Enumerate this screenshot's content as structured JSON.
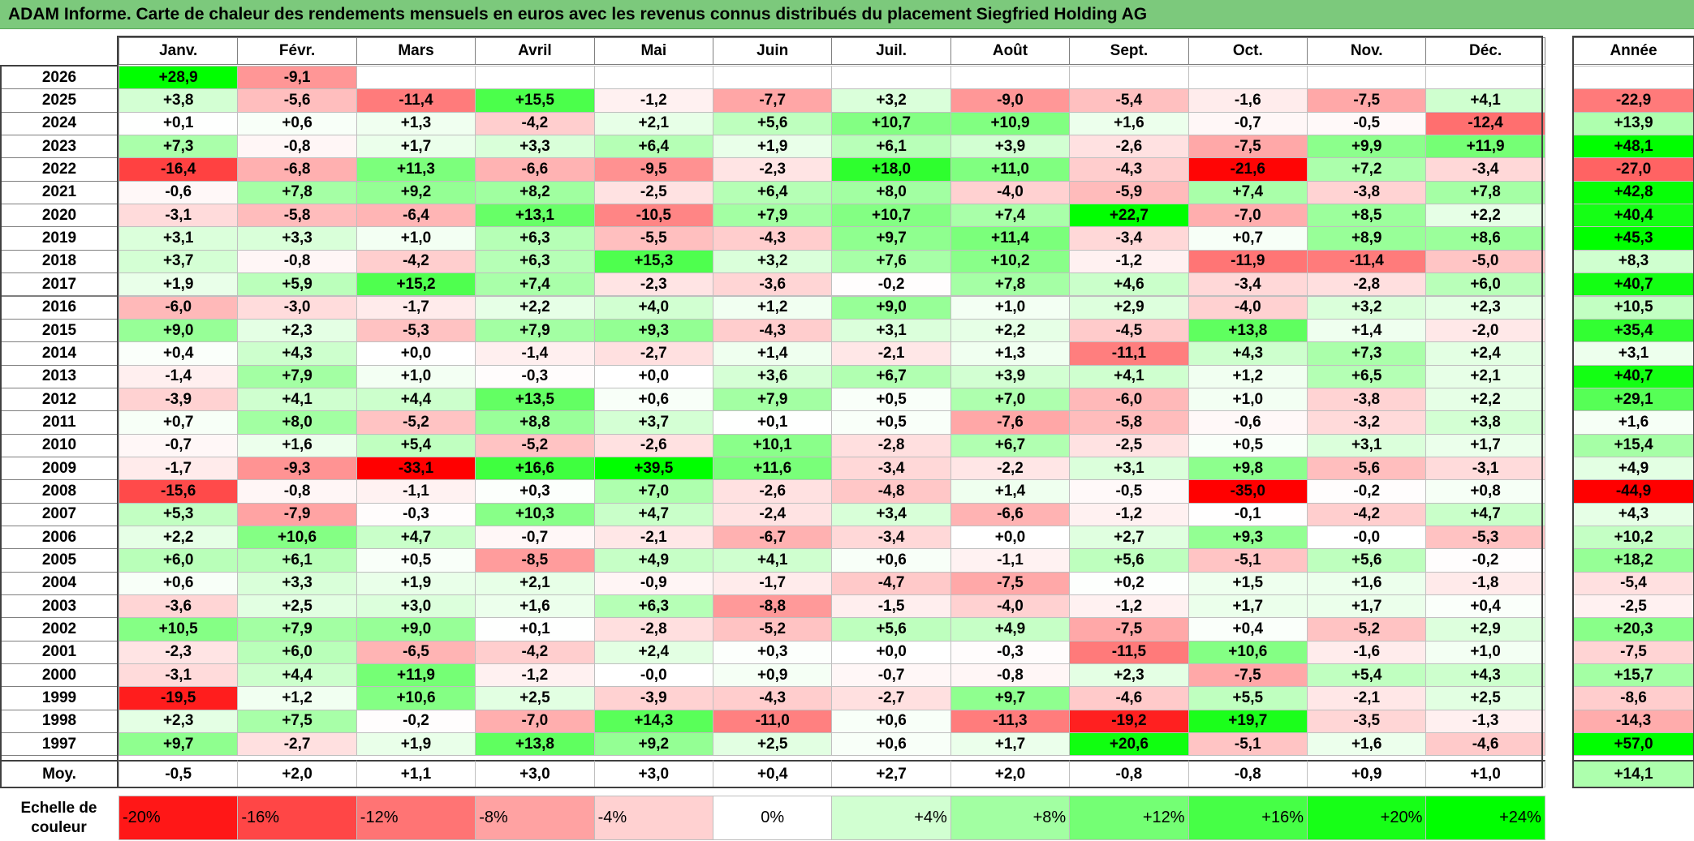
{
  "title": "ADAM Informe. Carte de chaleur des rendements mensuels en euros avec les revenus connus distribués du placement Siegfried Holding AG",
  "chart_data": {
    "type": "heatmap",
    "columns": [
      "Janv.",
      "Févr.",
      "Mars",
      "Avril",
      "Mai",
      "Juin",
      "Juil.",
      "Août",
      "Sept.",
      "Oct.",
      "Nov.",
      "Déc."
    ],
    "year_header": "Année",
    "rows": [
      {
        "year": "2026",
        "months": [
          "+28,9",
          "-9,1",
          "",
          "",
          "",
          "",
          "",
          "",
          "",
          "",
          "",
          ""
        ],
        "annual": ""
      },
      {
        "year": "2025",
        "months": [
          "+3,8",
          "-5,6",
          "-11,4",
          "+15,5",
          "-1,2",
          "-7,7",
          "+3,2",
          "-9,0",
          "-5,4",
          "-1,6",
          "-7,5",
          "+4,1"
        ],
        "annual": "-22,9"
      },
      {
        "year": "2024",
        "months": [
          "+0,1",
          "+0,6",
          "+1,3",
          "-4,2",
          "+2,1",
          "+5,6",
          "+10,7",
          "+10,9",
          "+1,6",
          "-0,7",
          "-0,5",
          "-12,4"
        ],
        "annual": "+13,9"
      },
      {
        "year": "2023",
        "months": [
          "+7,3",
          "-0,8",
          "+1,7",
          "+3,3",
          "+6,4",
          "+1,9",
          "+6,1",
          "+3,9",
          "-2,6",
          "-7,5",
          "+9,9",
          "+11,9"
        ],
        "annual": "+48,1"
      },
      {
        "year": "2022",
        "months": [
          "-16,4",
          "-6,8",
          "+11,3",
          "-6,6",
          "-9,5",
          "-2,3",
          "+18,0",
          "+11,0",
          "-4,3",
          "-21,6",
          "+7,2",
          "-3,4"
        ],
        "annual": "-27,0"
      },
      {
        "year": "2021",
        "months": [
          "-0,6",
          "+7,8",
          "+9,2",
          "+8,2",
          "-2,5",
          "+6,4",
          "+8,0",
          "-4,0",
          "-5,9",
          "+7,4",
          "-3,8",
          "+7,8"
        ],
        "annual": "+42,8"
      },
      {
        "year": "2020",
        "months": [
          "-3,1",
          "-5,8",
          "-6,4",
          "+13,1",
          "-10,5",
          "+7,9",
          "+10,7",
          "+7,4",
          "+22,7",
          "-7,0",
          "+8,5",
          "+2,2"
        ],
        "annual": "+40,4"
      },
      {
        "year": "2019",
        "months": [
          "+3,1",
          "+3,3",
          "+1,0",
          "+6,3",
          "-5,5",
          "-4,3",
          "+9,7",
          "+11,4",
          "-3,4",
          "+0,7",
          "+8,9",
          "+8,6"
        ],
        "annual": "+45,3"
      },
      {
        "year": "2018",
        "months": [
          "+3,7",
          "-0,8",
          "-4,2",
          "+6,3",
          "+15,3",
          "+3,2",
          "+7,6",
          "+10,2",
          "-1,2",
          "-11,9",
          "-11,4",
          "-5,0"
        ],
        "annual": "+8,3"
      },
      {
        "year": "2017",
        "months": [
          "+1,9",
          "+5,9",
          "+15,2",
          "+7,4",
          "-2,3",
          "-3,6",
          "-0,2",
          "+7,8",
          "+4,6",
          "-3,4",
          "-2,8",
          "+6,0"
        ],
        "annual": "+40,7"
      },
      {
        "year": "2016",
        "months": [
          "-6,0",
          "-3,0",
          "-1,7",
          "+2,2",
          "+4,0",
          "+1,2",
          "+9,0",
          "+1,0",
          "+2,9",
          "-4,0",
          "+3,2",
          "+2,3"
        ],
        "annual": "+10,5"
      },
      {
        "year": "2015",
        "months": [
          "+9,0",
          "+2,3",
          "-5,3",
          "+7,9",
          "+9,3",
          "-4,3",
          "+3,1",
          "+2,2",
          "-4,5",
          "+13,8",
          "+1,4",
          "-2,0"
        ],
        "annual": "+35,4"
      },
      {
        "year": "2014",
        "months": [
          "+0,4",
          "+4,3",
          "+0,0",
          "-1,4",
          "-2,7",
          "+1,4",
          "-2,1",
          "+1,3",
          "-11,1",
          "+4,3",
          "+7,3",
          "+2,4"
        ],
        "annual": "+3,1"
      },
      {
        "year": "2013",
        "months": [
          "-1,4",
          "+7,9",
          "+1,0",
          "-0,3",
          "+0,0",
          "+3,6",
          "+6,7",
          "+3,9",
          "+4,1",
          "+1,2",
          "+6,5",
          "+2,1"
        ],
        "annual": "+40,7"
      },
      {
        "year": "2012",
        "months": [
          "-3,9",
          "+4,1",
          "+4,4",
          "+13,5",
          "+0,6",
          "+7,9",
          "+0,5",
          "+7,0",
          "-6,0",
          "+1,0",
          "-3,8",
          "+2,2"
        ],
        "annual": "+29,1"
      },
      {
        "year": "2011",
        "months": [
          "+0,7",
          "+8,0",
          "-5,2",
          "+8,8",
          "+3,7",
          "+0,1",
          "+0,5",
          "-7,6",
          "-5,8",
          "-0,6",
          "-3,2",
          "+3,8"
        ],
        "annual": "+1,6"
      },
      {
        "year": "2010",
        "months": [
          "-0,7",
          "+1,6",
          "+5,4",
          "-5,2",
          "-2,6",
          "+10,1",
          "-2,8",
          "+6,7",
          "-2,5",
          "+0,5",
          "+3,1",
          "+1,7"
        ],
        "annual": "+15,4"
      },
      {
        "year": "2009",
        "months": [
          "-1,7",
          "-9,3",
          "-33,1",
          "+16,6",
          "+39,5",
          "+11,6",
          "-3,4",
          "-2,2",
          "+3,1",
          "+9,8",
          "-5,6",
          "-3,1"
        ],
        "annual": "+4,9"
      },
      {
        "year": "2008",
        "months": [
          "-15,6",
          "-0,8",
          "-1,1",
          "+0,3",
          "+7,0",
          "-2,6",
          "-4,8",
          "+1,4",
          "-0,5",
          "-35,0",
          "-0,2",
          "+0,8"
        ],
        "annual": "-44,9"
      },
      {
        "year": "2007",
        "months": [
          "+5,3",
          "-7,9",
          "-0,3",
          "+10,3",
          "+4,7",
          "-2,4",
          "+3,4",
          "-6,6",
          "-1,2",
          "-0,1",
          "-4,2",
          "+4,7"
        ],
        "annual": "+4,3"
      },
      {
        "year": "2006",
        "months": [
          "+2,2",
          "+10,6",
          "+4,7",
          "-0,7",
          "-2,1",
          "-6,7",
          "-3,4",
          "+0,0",
          "+2,7",
          "+9,3",
          "-0,0",
          "-5,3"
        ],
        "annual": "+10,2"
      },
      {
        "year": "2005",
        "months": [
          "+6,0",
          "+6,1",
          "+0,5",
          "-8,5",
          "+4,9",
          "+4,1",
          "+0,6",
          "-1,1",
          "+5,6",
          "-5,1",
          "+5,6",
          "-0,2"
        ],
        "annual": "+18,2"
      },
      {
        "year": "2004",
        "months": [
          "+0,6",
          "+3,3",
          "+1,9",
          "+2,1",
          "-0,9",
          "-1,7",
          "-4,7",
          "-7,5",
          "+0,2",
          "+1,5",
          "+1,6",
          "-1,8"
        ],
        "annual": "-5,4"
      },
      {
        "year": "2003",
        "months": [
          "-3,6",
          "+2,5",
          "+3,0",
          "+1,6",
          "+6,3",
          "-8,8",
          "-1,5",
          "-4,0",
          "-1,2",
          "+1,7",
          "+1,7",
          "+0,4"
        ],
        "annual": "-2,5"
      },
      {
        "year": "2002",
        "months": [
          "+10,5",
          "+7,9",
          "+9,0",
          "+0,1",
          "-2,8",
          "-5,2",
          "+5,6",
          "+4,9",
          "-7,5",
          "+0,4",
          "-5,2",
          "+2,9"
        ],
        "annual": "+20,3"
      },
      {
        "year": "2001",
        "months": [
          "-2,3",
          "+6,0",
          "-6,5",
          "-4,2",
          "+2,4",
          "+0,3",
          "+0,0",
          "-0,3",
          "-11,5",
          "+10,6",
          "-1,6",
          "+1,0"
        ],
        "annual": "-7,5"
      },
      {
        "year": "2000",
        "months": [
          "-3,1",
          "+4,4",
          "+11,9",
          "-1,2",
          "-0,0",
          "+0,9",
          "-0,7",
          "-0,8",
          "+2,3",
          "-7,5",
          "+5,4",
          "+4,3"
        ],
        "annual": "+15,7"
      },
      {
        "year": "1999",
        "months": [
          "-19,5",
          "+1,2",
          "+10,6",
          "+2,5",
          "-3,9",
          "-4,3",
          "-2,7",
          "+9,7",
          "-4,6",
          "+5,5",
          "-2,1",
          "+2,5"
        ],
        "annual": "-8,6"
      },
      {
        "year": "1998",
        "months": [
          "+2,3",
          "+7,5",
          "-0,2",
          "-7,0",
          "+14,3",
          "-11,0",
          "+0,6",
          "-11,3",
          "-19,2",
          "+19,7",
          "-3,5",
          "-1,3"
        ],
        "annual": "-14,3"
      },
      {
        "year": "1997",
        "months": [
          "+9,7",
          "-2,7",
          "+1,9",
          "+13,8",
          "+9,2",
          "+2,5",
          "+0,6",
          "+1,7",
          "+20,6",
          "-5,1",
          "+1,6",
          "-4,6"
        ],
        "annual": "+57,0"
      }
    ],
    "average": {
      "label": "Moy.",
      "months": [
        "-0,5",
        "+2,0",
        "+1,1",
        "+3,0",
        "+3,0",
        "+0,4",
        "+2,7",
        "+2,0",
        "-0,8",
        "-0,8",
        "+0,9",
        "+1,0"
      ],
      "annual": "+14,1"
    },
    "scale": {
      "label": "Echelle de couleur",
      "steps": [
        "-20%",
        "-16%",
        "-12%",
        "-8%",
        "-4%",
        "0%",
        "+4%",
        "+8%",
        "+12%",
        "+16%",
        "+20%",
        "+24%"
      ],
      "values": [
        -20,
        -16,
        -12,
        -8,
        -4,
        0,
        4,
        8,
        12,
        16,
        20,
        24
      ]
    },
    "colors": {
      "negative_max": "#ff0000",
      "neutral": "#ffffff",
      "positive_max": "#00ff00",
      "title_bg": "#7cc97c"
    }
  }
}
